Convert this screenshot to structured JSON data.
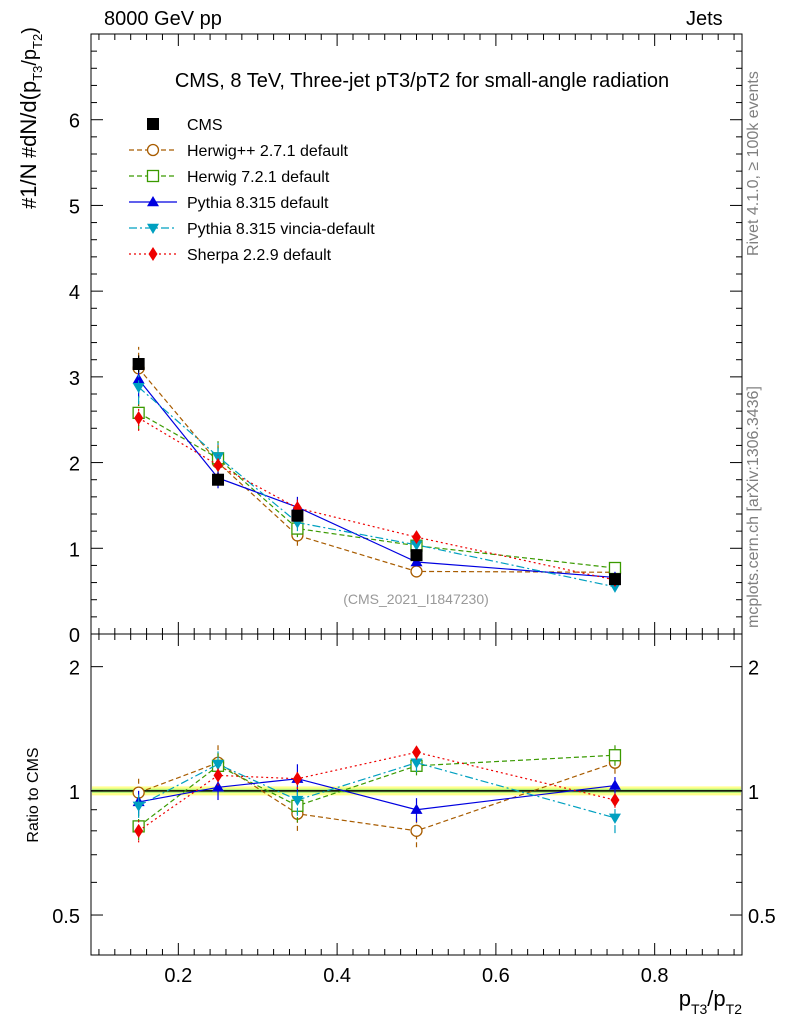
{
  "header": {
    "left": "8000 GeV pp",
    "right": "Jets"
  },
  "side_labels": {
    "rivet": "Rivet 4.1.0, ≥ 100k events",
    "mcplots": "mcplots.cern.ch [arXiv:1306.3436]"
  },
  "chart_data": {
    "type": "line",
    "title": "CMS, 8 TeV, Three-jet pT3/pT2 for small-angle radiation",
    "watermark": "(CMS_2021_I1847230)",
    "xlabel": "p_T3/p_T2",
    "ylabel": "#1/N #dN/d(p_T3/p_T2)",
    "ratio_ylabel": "Ratio to CMS",
    "xlim": [
      0.09,
      0.91
    ],
    "ylim": [
      0,
      7
    ],
    "ratio_ylim": [
      0.4,
      2.4
    ],
    "x_ticks": [
      "0.2",
      "0.4",
      "0.6",
      "0.8"
    ],
    "y_ticks": [
      "0",
      "1",
      "2",
      "3",
      "4",
      "5",
      "6"
    ],
    "ratio_ticks": [
      "0.5",
      "1",
      "2"
    ],
    "x": [
      0.15,
      0.25,
      0.35,
      0.5,
      0.75
    ],
    "data": {
      "name": "CMS",
      "values": [
        3.15,
        1.8,
        1.38,
        0.92,
        0.64
      ],
      "errors": [
        0.1,
        0.07,
        0.06,
        0.04,
        0.03
      ]
    },
    "series": [
      {
        "name": "Herwig++ 2.7.1 default",
        "color": "#a85c00",
        "dash": "5,3",
        "marker": "circle-open",
        "values": [
          3.1,
          2.0,
          1.15,
          0.73,
          0.72
        ],
        "errors": [
          0.25,
          0.22,
          0.12,
          0.06,
          0.05
        ],
        "ratio": [
          0.99,
          1.17,
          0.88,
          0.8,
          1.17
        ],
        "ratio_errors": [
          0.08,
          0.12,
          0.08,
          0.07,
          0.07
        ]
      },
      {
        "name": "Herwig 7.2.1 default",
        "color": "#3a9a00",
        "dash": "5,3",
        "marker": "square-open",
        "values": [
          2.58,
          2.05,
          1.23,
          1.03,
          0.77
        ],
        "errors": [
          0.2,
          0.2,
          0.1,
          0.06,
          0.05
        ],
        "ratio": [
          0.82,
          1.15,
          0.92,
          1.15,
          1.22
        ],
        "ratio_errors": [
          0.06,
          0.1,
          0.08,
          0.06,
          0.07
        ]
      },
      {
        "name": "Pythia 8.315 default",
        "color": "#0000e0",
        "dash": "",
        "marker": "triangle-up",
        "values": [
          2.97,
          1.82,
          1.48,
          0.84,
          0.66
        ],
        "errors": [
          0.2,
          0.12,
          0.12,
          0.05,
          0.04
        ],
        "ratio": [
          0.94,
          1.02,
          1.07,
          0.9,
          1.03
        ],
        "ratio_errors": [
          0.06,
          0.07,
          0.09,
          0.06,
          0.05
        ]
      },
      {
        "name": "Pythia 8.315 vincia-default",
        "color": "#00a0c0",
        "dash": "8,3,2,3",
        "marker": "triangle-down",
        "values": [
          2.88,
          2.07,
          1.3,
          1.04,
          0.55
        ],
        "errors": [
          0.2,
          0.18,
          0.1,
          0.06,
          0.04
        ],
        "ratio": [
          0.92,
          1.16,
          0.95,
          1.17,
          0.86
        ],
        "ratio_errors": [
          0.06,
          0.1,
          0.08,
          0.06,
          0.07
        ]
      },
      {
        "name": "Sherpa 2.2.9 default",
        "color": "#ee0000",
        "dash": "2,3",
        "marker": "diamond",
        "values": [
          2.52,
          1.97,
          1.47,
          1.13,
          0.63
        ],
        "errors": [
          0.15,
          0.12,
          0.1,
          0.06,
          0.04
        ],
        "ratio": [
          0.8,
          1.09,
          1.07,
          1.24,
          0.95
        ],
        "ratio_errors": [
          0.05,
          0.06,
          0.06,
          0.05,
          0.04
        ]
      }
    ]
  }
}
